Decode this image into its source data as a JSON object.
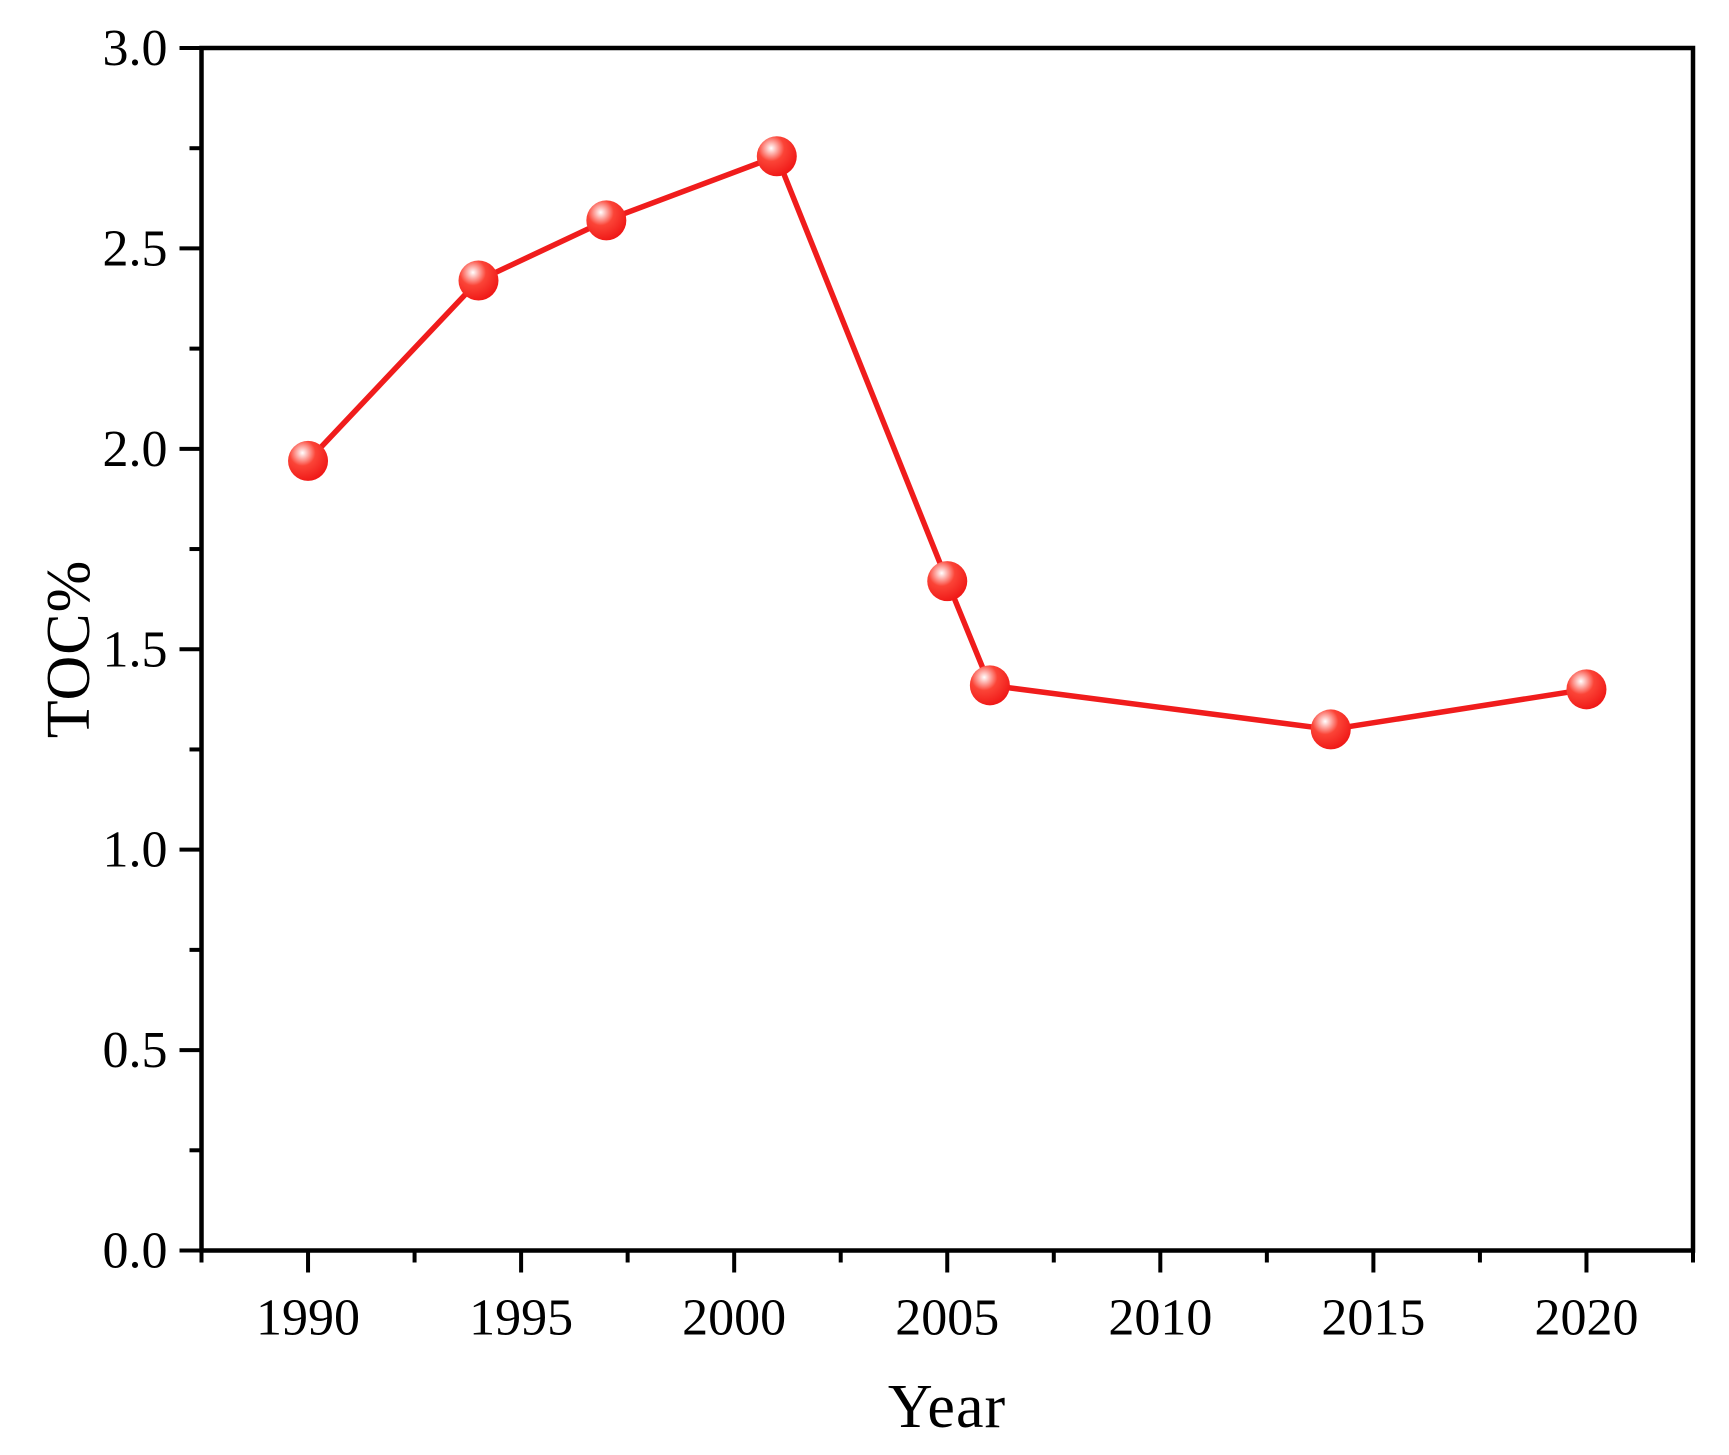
{
  "chart_data": {
    "type": "line",
    "title": "",
    "xlabel": "Year",
    "ylabel": "TOC%",
    "series": [
      {
        "name": "TOC%",
        "x": [
          1990,
          1994,
          1997,
          2001,
          2005,
          2006,
          2014,
          2020
        ],
        "y": [
          1.97,
          2.42,
          2.57,
          2.73,
          1.67,
          1.41,
          1.3,
          1.4
        ]
      }
    ],
    "xlim": [
      1987.5,
      2022.5
    ],
    "ylim": [
      0.0,
      3.0
    ],
    "x_major_ticks": [
      1990,
      1995,
      2000,
      2005,
      2010,
      2015,
      2020
    ],
    "x_tick_labels": [
      "1990",
      "1995",
      "2000",
      "2005",
      "2010",
      "2015",
      "2020"
    ],
    "x_minor_ticks": [
      1987.5,
      1992.5,
      1997.5,
      2002.5,
      2007.5,
      2012.5,
      2017.5,
      2022.5
    ],
    "y_major_ticks": [
      0.0,
      0.5,
      1.0,
      1.5,
      2.0,
      2.5,
      3.0
    ],
    "y_tick_labels": [
      "0.0",
      "0.5",
      "1.0",
      "1.5",
      "2.0",
      "2.5",
      "3.0"
    ],
    "y_minor_ticks": [
      0.25,
      0.75,
      1.25,
      1.75,
      2.25,
      2.75
    ],
    "grid": false,
    "legend_position": "none",
    "frame": "full-box",
    "marker_style": "glossy-sphere",
    "line_color": "#f01c1c",
    "marker_core_color": "#ee1212",
    "marker_mid_color": "#fb4437",
    "marker_highlight_color": "#ffffff",
    "axis_color": "#000000",
    "background_color": "#ffffff"
  }
}
